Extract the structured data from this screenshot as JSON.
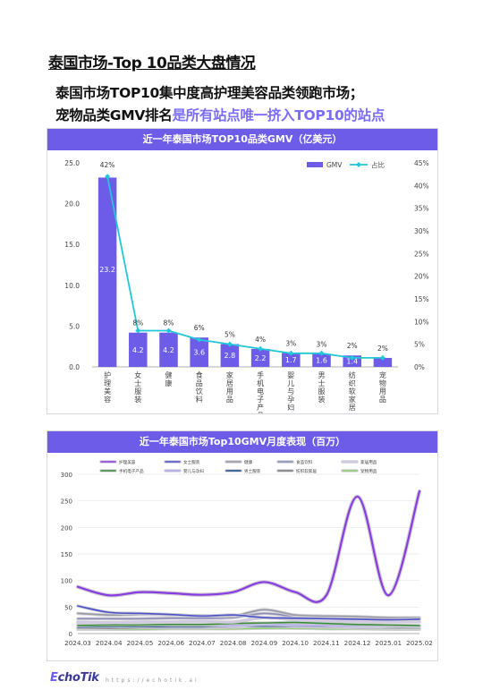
{
  "page": {
    "title": "泰国市场-Top 10品类大盘情况",
    "subtitle_line1": "泰国市场TOP10集中度高护理美容品类领跑市场；",
    "subtitle_line2_prefix": "宠物品类GMV排名",
    "subtitle_line2_highlight": "是所有站点唯一挤入TOP10的站点"
  },
  "colors": {
    "accent": "#6c5ce7",
    "bar": "#6c5ce7",
    "share_line": "#22c7d9",
    "highlight_text": "#7b6cf6"
  },
  "footer": {
    "logo_prefix": "E",
    "logo_rest": "choTik",
    "logo_sub": "",
    "url": "https://echotik.ai"
  },
  "chart_data": [
    {
      "type": "bar",
      "title": "近一年泰国市场TOP10品类GMV（亿美元）",
      "categories": [
        "护理美容",
        "女士服装",
        "健康",
        "食品饮料",
        "家居用品",
        "手机电子产品",
        "婴儿与孕妇",
        "男士服装",
        "纺织软家居",
        "宠物用品"
      ],
      "series": [
        {
          "name": "GMV",
          "values": [
            23.2,
            4.2,
            4.2,
            3.6,
            2.8,
            2.2,
            1.7,
            1.6,
            1.4,
            1.1
          ],
          "labels": [
            "23.2",
            "4.2",
            "4.2",
            "3.6",
            "2.8",
            "2.2",
            "1.7",
            "1.6",
            "1.4",
            ""
          ],
          "axis": "left"
        },
        {
          "name": "占比",
          "type": "line",
          "values": [
            42,
            8,
            8,
            6,
            5,
            4,
            3,
            3,
            2,
            2
          ],
          "labels": [
            "42%",
            "8%",
            "8%",
            "6%",
            "5%",
            "4%",
            "3%",
            "3%",
            "2%",
            "2%"
          ],
          "axis": "right"
        }
      ],
      "ylim": [
        0,
        25
      ],
      "yticks": [
        "0.0",
        "5.0",
        "10.0",
        "15.0",
        "20.0",
        "25.0"
      ],
      "y2lim": [
        0,
        45
      ],
      "y2ticks": [
        "0%",
        "5%",
        "10%",
        "15%",
        "20%",
        "25%",
        "30%",
        "35%",
        "40%",
        "45%"
      ],
      "legend": "top-right",
      "grid": false
    },
    {
      "type": "line",
      "title": "近一年泰国市场Top10GMV月度表现（百万）",
      "x": [
        "2024.03",
        "2024.04",
        "2024.05",
        "2024.06",
        "2024.07",
        "2024.08",
        "2024.09",
        "2024.10",
        "2024.11",
        "2024.12",
        "2025.01",
        "2025.02"
      ],
      "ylim": [
        0,
        300
      ],
      "yticks": [
        "0",
        "50",
        "100",
        "150",
        "200",
        "250",
        "300"
      ],
      "grid": true,
      "legend": "top",
      "series": [
        {
          "name": "护理美容",
          "color": "#8a3ce0",
          "values": [
            88,
            72,
            78,
            76,
            73,
            78,
            97,
            78,
            72,
            258,
            72,
            268
          ]
        },
        {
          "name": "女士服装",
          "color": "#4a4fc8",
          "values": [
            52,
            40,
            38,
            36,
            33,
            35,
            30,
            29,
            28,
            27,
            26,
            27
          ]
        },
        {
          "name": "健康",
          "color": "#9a9aa6",
          "values": [
            38,
            35,
            36,
            35,
            34,
            33,
            45,
            35,
            33,
            32,
            30,
            30
          ]
        },
        {
          "name": "食品饮料",
          "color": "#8c8cb8",
          "values": [
            28,
            28,
            28,
            29,
            29,
            30,
            38,
            32,
            30,
            29,
            28,
            28
          ]
        },
        {
          "name": "家居用品",
          "color": "#d4c8e6",
          "values": [
            22,
            21,
            22,
            22,
            23,
            22,
            30,
            26,
            24,
            23,
            22,
            22
          ]
        },
        {
          "name": "手机电子产品",
          "color": "#3a8a3a",
          "values": [
            15,
            16,
            16,
            17,
            17,
            19,
            20,
            21,
            19,
            17,
            16,
            15
          ]
        },
        {
          "name": "婴儿与孕妇",
          "color": "#b0a8f0",
          "values": [
            20,
            18,
            17,
            16,
            16,
            15,
            17,
            16,
            15,
            14,
            14,
            14
          ]
        },
        {
          "name": "男士服装",
          "color": "#1c4a8c",
          "values": [
            12,
            13,
            13,
            13,
            13,
            14,
            14,
            14,
            13,
            13,
            12,
            12
          ]
        },
        {
          "name": "纺织软家居",
          "color": "#7a7a7a",
          "values": [
            10,
            10,
            11,
            11,
            11,
            12,
            14,
            13,
            12,
            11,
            10,
            10
          ]
        },
        {
          "name": "宠物用品",
          "color": "#8fce6a",
          "values": [
            8,
            8,
            8,
            9,
            9,
            9,
            10,
            10,
            9,
            9,
            8,
            8
          ]
        }
      ]
    }
  ]
}
